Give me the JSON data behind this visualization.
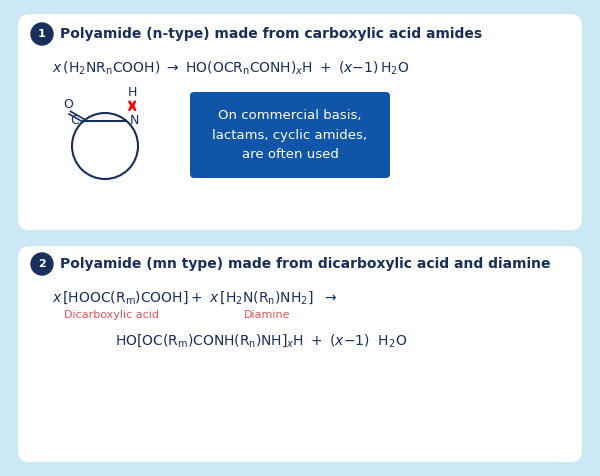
{
  "bg_color": "#cce8f4",
  "panel_color": "#ffffff",
  "box1_title": "Polyamide (n-type) made from carboxylic acid amides",
  "box2_title": "Polyamide (mn type) made from dicarboxylic acid and diamine",
  "blue_box_text": "On commercial basis,\nlactams, cyclic amides,\nare often used",
  "blue_box_color": "#1155a8",
  "blue_box_text_color": "#ffffff",
  "title_color": "#1a2e5c",
  "formula_color": "#1a2e5c",
  "label_color_red": "#e05555",
  "badge_color": "#1a2e5c",
  "badge_text_color": "#ffffff",
  "panel_edge_color": "#b8d8ee"
}
